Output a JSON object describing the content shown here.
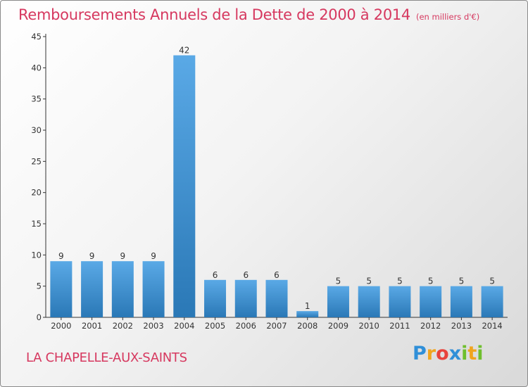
{
  "header": {
    "title": "Remboursements Annuels de la Dette de 2000 à 2014",
    "unit": "(en milliers d'€)"
  },
  "footer": {
    "commune": "LA CHAPELLE-AUX-SAINTS",
    "logo": [
      "P",
      "r",
      "o",
      "x",
      "i",
      "t",
      "i"
    ]
  },
  "colors": {
    "accent": "#d6385f",
    "bar_top": "#5aa9e6",
    "bar_bottom": "#2a78b6",
    "logo_letters": [
      "#2f8fd8",
      "#f0a51e",
      "#e8433c",
      "#2f8fd8",
      "#6fbf2e",
      "#f0a51e",
      "#6fbf2e"
    ]
  },
  "chart_data": {
    "type": "bar",
    "title": "Remboursements Annuels de la Dette de 2000 à 2014",
    "xlabel": "",
    "ylabel": "",
    "categories": [
      "2000",
      "2001",
      "2002",
      "2003",
      "2004",
      "2005",
      "2006",
      "2007",
      "2008",
      "2009",
      "2010",
      "2011",
      "2012",
      "2013",
      "2014"
    ],
    "values": [
      9,
      9,
      9,
      9,
      42,
      6,
      6,
      6,
      1,
      5,
      5,
      5,
      5,
      5,
      5
    ],
    "ylim": [
      0,
      45
    ],
    "yticks": [
      0,
      5,
      10,
      15,
      20,
      25,
      30,
      35,
      40,
      45
    ],
    "grid": false,
    "legend": "none"
  }
}
